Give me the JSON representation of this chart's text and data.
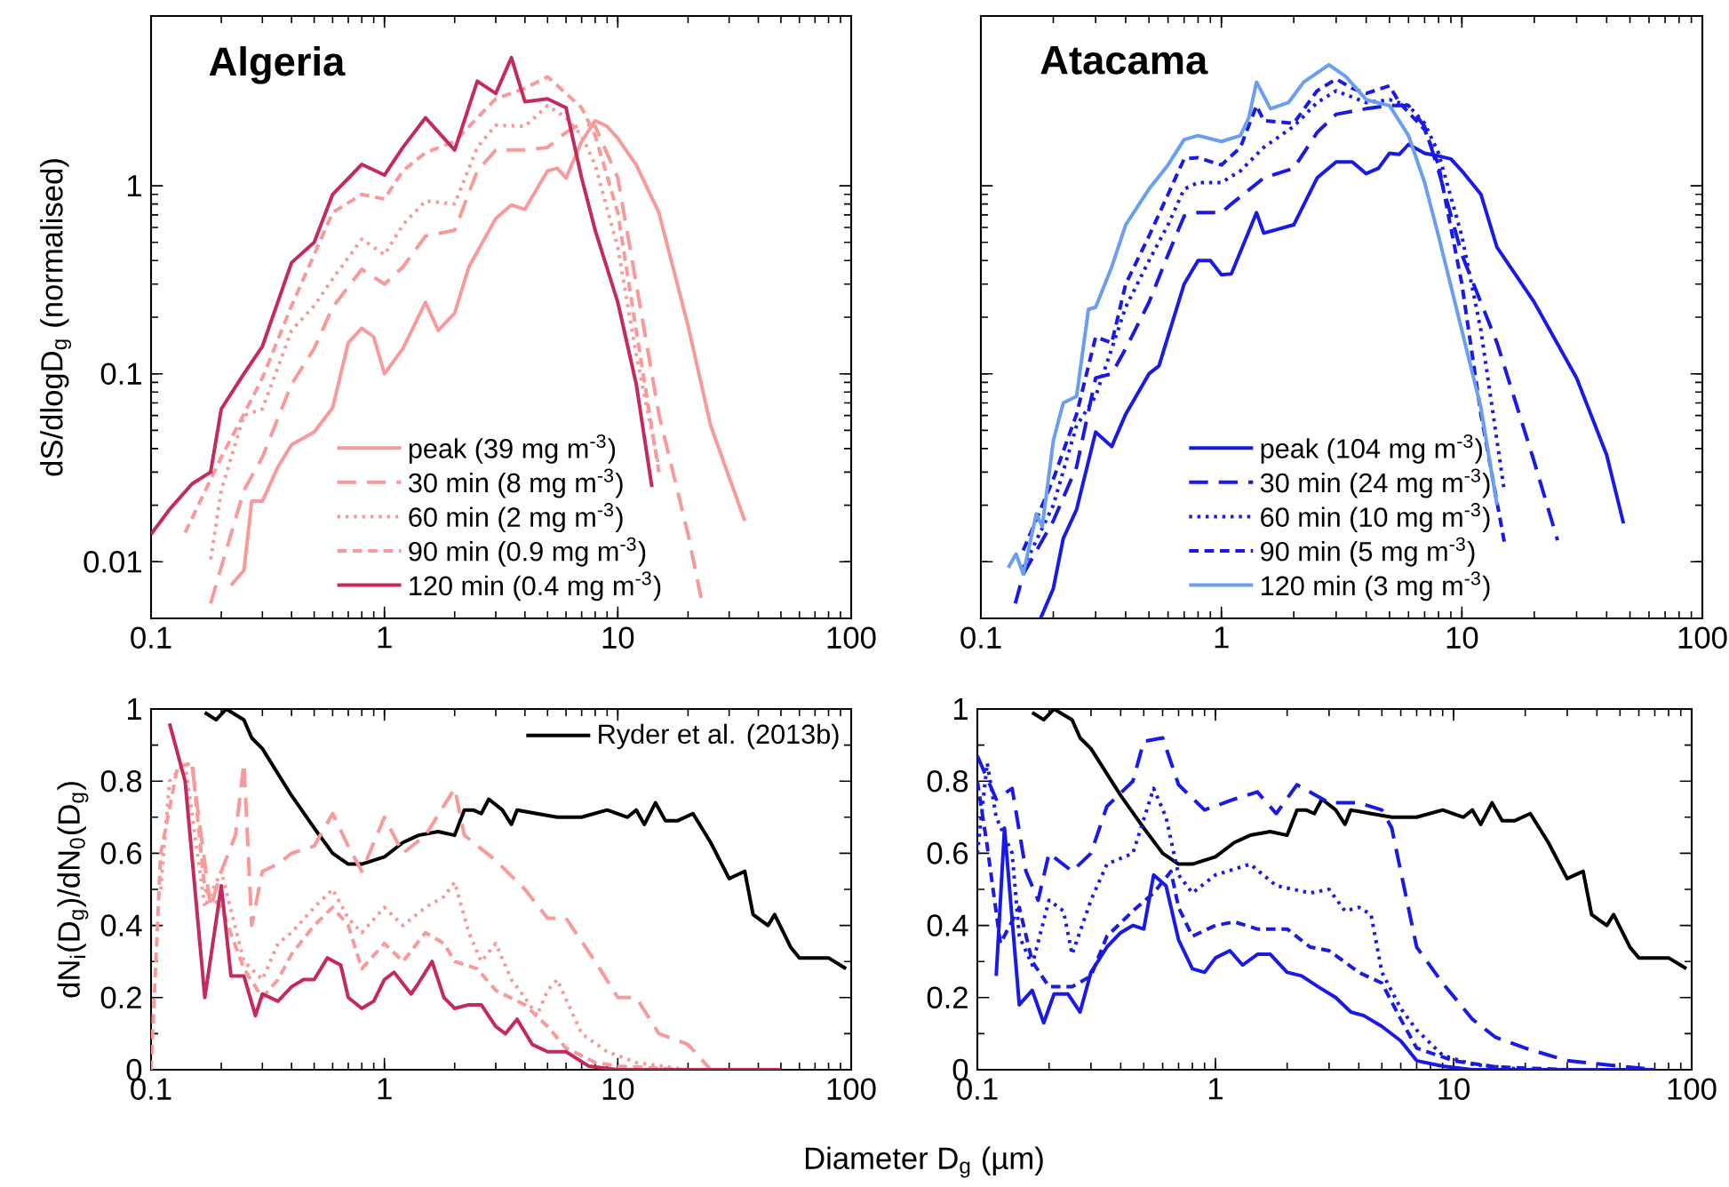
{
  "chart_data": [
    {
      "type": "line",
      "title": "Algeria",
      "ylabel": "dS/dlogD$_{g}$ (normalised)",
      "log": "xy",
      "xlim": [
        0.1,
        100
      ],
      "ylim": [
        0.005,
        8
      ],
      "xticks": [
        0.1,
        1,
        10,
        100
      ],
      "yticks": [
        0.01,
        0.1,
        1
      ],
      "legend": "bottom",
      "series": [
        {
          "name": "peak (39 mg m$^{-3}$)",
          "color": "#f99a9a",
          "line_style": "solid",
          "x": [
            0.22,
            0.25,
            0.27,
            0.3,
            0.35,
            0.4,
            0.5,
            0.6,
            0.7,
            0.8,
            0.9,
            1,
            1.2,
            1.5,
            1.7,
            2,
            2.3,
            3,
            3.5,
            4,
            5,
            5.5,
            6,
            7,
            8,
            9,
            10,
            12,
            15,
            20,
            25,
            35
          ],
          "values": [
            0.0075,
            0.009,
            0.021,
            0.021,
            0.032,
            0.042,
            0.049,
            0.066,
            0.146,
            0.175,
            0.157,
            0.1,
            0.136,
            0.24,
            0.17,
            0.21,
            0.37,
            0.67,
            0.79,
            0.75,
            1.2,
            1.24,
            1.1,
            1.72,
            2.22,
            2.07,
            1.79,
            1.29,
            0.72,
            0.18,
            0.053,
            0.0165
          ]
        },
        {
          "name": "30 min (8 mg m$^{-3}$)",
          "color": "#f99a9a",
          "line_style": "long dashed",
          "x": [
            0.18,
            0.25,
            0.3,
            0.4,
            0.5,
            0.6,
            0.8,
            1,
            1.2,
            1.5,
            2,
            2.5,
            3,
            4,
            5,
            6,
            7,
            8,
            10,
            12,
            15,
            20,
            23
          ],
          "values": [
            0.006,
            0.024,
            0.036,
            0.088,
            0.136,
            0.226,
            0.36,
            0.3,
            0.37,
            0.54,
            0.58,
            1.2,
            1.55,
            1.55,
            1.6,
            1.92,
            2.15,
            2.07,
            1.1,
            0.3,
            0.061,
            0.014,
            0.006
          ]
        },
        {
          "name": "60 min (2 mg m$^{-3}$)",
          "color": "#f99a9a",
          "line_style": "dotted",
          "x": [
            0.18,
            0.2,
            0.25,
            0.3,
            0.4,
            0.5,
            0.6,
            0.8,
            1,
            1.2,
            1.5,
            2,
            2.5,
            3,
            4,
            5,
            6,
            7,
            8,
            10,
            12,
            15
          ],
          "values": [
            0.0103,
            0.024,
            0.06,
            0.065,
            0.17,
            0.23,
            0.32,
            0.52,
            0.43,
            0.62,
            0.83,
            0.8,
            1.6,
            2.1,
            2.07,
            2.67,
            2.3,
            1.85,
            1.29,
            0.47,
            0.126,
            0.032
          ]
        },
        {
          "name": "90 min (0.9 mg m$^{-3}$)",
          "color": "#f99a9a",
          "line_style": "dashed",
          "x": [
            0.14,
            0.2,
            0.25,
            0.3,
            0.4,
            0.5,
            0.6,
            0.8,
            1,
            1.2,
            1.5,
            2,
            2.5,
            3,
            4,
            5,
            6,
            7,
            8,
            10,
            12,
            15
          ],
          "values": [
            0.0143,
            0.036,
            0.061,
            0.095,
            0.23,
            0.43,
            0.72,
            0.9,
            0.85,
            1.2,
            1.5,
            1.72,
            2.3,
            2.9,
            3.3,
            3.8,
            3.1,
            2.6,
            1.85,
            0.72,
            0.17,
            0.03
          ]
        },
        {
          "name": "120 min (0.4 mg m$^{-3}$)",
          "color": "#c42a5c",
          "line_style": "solid",
          "x": [
            0.1,
            0.12,
            0.15,
            0.18,
            0.2,
            0.25,
            0.3,
            0.4,
            0.5,
            0.6,
            0.8,
            1,
            1.2,
            1.5,
            2,
            2.5,
            3,
            3.5,
            4,
            5,
            6,
            7,
            8,
            10,
            12,
            14
          ],
          "values": [
            0.014,
            0.019,
            0.026,
            0.03,
            0.065,
            0.1,
            0.14,
            0.39,
            0.5,
            0.9,
            1.3,
            1.14,
            1.6,
            2.3,
            1.55,
            3.6,
            3.1,
            4.8,
            2.8,
            2.9,
            2.6,
            1.1,
            0.58,
            0.24,
            0.088,
            0.025
          ]
        }
      ]
    },
    {
      "type": "line",
      "title": "Atacama",
      "log": "xy",
      "xlim": [
        0.1,
        100
      ],
      "ylim": [
        0.005,
        8
      ],
      "xticks": [
        0.1,
        1,
        10,
        100
      ],
      "yticks": [
        0.01,
        0.1,
        1
      ],
      "tick_labels": "x",
      "legend": "bottom",
      "series": [
        {
          "name": "peak (104 mg m$^{-3}$)",
          "color": "#1a1ae6",
          "line_style": "solid",
          "x": [
            0.177,
            0.2,
            0.22,
            0.25,
            0.3,
            0.35,
            0.4,
            0.5,
            0.55,
            0.7,
            0.8,
            0.9,
            1,
            1.1,
            1.4,
            1.5,
            2,
            2.5,
            3,
            3.5,
            4,
            4.5,
            5,
            5.5,
            6,
            7,
            8,
            9,
            10,
            12,
            14,
            20,
            30,
            40,
            47
          ],
          "values": [
            0.005,
            0.0072,
            0.0133,
            0.019,
            0.049,
            0.041,
            0.061,
            0.1,
            0.11,
            0.3,
            0.4,
            0.4,
            0.336,
            0.34,
            0.72,
            0.56,
            0.62,
            1.1,
            1.34,
            1.34,
            1.16,
            1.24,
            1.49,
            1.47,
            1.66,
            1.49,
            1.44,
            1.39,
            1.2,
            0.9,
            0.47,
            0.24,
            0.095,
            0.037,
            0.016
          ]
        },
        {
          "name": "30 min (24 mg m$^{-3}$)",
          "color": "#1a1ae6",
          "line_style": "long dashed",
          "x": [
            0.139,
            0.15,
            0.2,
            0.25,
            0.3,
            0.35,
            0.4,
            0.5,
            0.6,
            0.7,
            0.8,
            1,
            1.1,
            1.5,
            2,
            2.5,
            3,
            4,
            5,
            6,
            7,
            8,
            10,
            14,
            20,
            25
          ],
          "values": [
            0.006,
            0.0086,
            0.0165,
            0.032,
            0.095,
            0.1,
            0.136,
            0.24,
            0.43,
            0.69,
            0.72,
            0.72,
            0.8,
            1.1,
            1.24,
            1.92,
            2.4,
            2.57,
            2.67,
            2.67,
            2.07,
            1.2,
            0.43,
            0.146,
            0.034,
            0.013
          ]
        },
        {
          "name": "60 min (10 mg m$^{-3}$)",
          "color": "#1a1ae6",
          "line_style": "dotted",
          "x": [
            0.15,
            0.2,
            0.25,
            0.3,
            0.35,
            0.4,
            0.5,
            0.6,
            0.7,
            0.8,
            1,
            1.2,
            1.5,
            2,
            2.5,
            3,
            4,
            5,
            6,
            7,
            8,
            10,
            12,
            15
          ],
          "values": [
            0.0093,
            0.02,
            0.053,
            0.076,
            0.136,
            0.226,
            0.4,
            0.62,
            0.96,
            1.04,
            1.04,
            1.2,
            1.6,
            2.07,
            2.77,
            3.2,
            2.77,
            2.87,
            2.67,
            2.15,
            1.49,
            0.54,
            0.17,
            0.024
          ]
        },
        {
          "name": "90 min (5 mg m$^{-3}$)",
          "color": "#1a1ae6",
          "line_style": "dashed",
          "x": [
            0.15,
            0.2,
            0.25,
            0.3,
            0.35,
            0.4,
            0.5,
            0.6,
            0.7,
            0.8,
            1,
            1.2,
            1.4,
            1.5,
            2,
            2.5,
            3,
            3.5,
            4,
            5,
            5.5,
            7,
            8,
            10,
            12,
            15
          ],
          "values": [
            0.0115,
            0.0275,
            0.061,
            0.157,
            0.146,
            0.3,
            0.54,
            0.9,
            1.39,
            1.41,
            1.29,
            1.6,
            2.67,
            2.22,
            2.15,
            3.2,
            3.7,
            3.3,
            3.1,
            3.4,
            2.77,
            1.99,
            1.29,
            0.3,
            0.061,
            0.0128
          ]
        },
        {
          "name": "120 min (3 mg m$^{-3}$)",
          "color": "#6a9ef0",
          "line_style": "solid",
          "x": [
            0.13,
            0.14,
            0.15,
            0.17,
            0.18,
            0.2,
            0.22,
            0.25,
            0.28,
            0.3,
            0.35,
            0.4,
            0.5,
            0.6,
            0.7,
            0.8,
            1,
            1.2,
            1.3,
            1.4,
            1.6,
            1.9,
            2.2,
            2.8,
            3.3,
            4,
            5,
            6,
            7,
            8,
            10,
            12,
            14
          ],
          "values": [
            0.0093,
            0.011,
            0.0086,
            0.018,
            0.0154,
            0.044,
            0.07,
            0.076,
            0.22,
            0.226,
            0.37,
            0.62,
            0.96,
            1.29,
            1.76,
            1.85,
            1.72,
            1.85,
            2.3,
            3.56,
            2.57,
            2.77,
            3.56,
            4.4,
            3.8,
            2.87,
            2.67,
            1.85,
            1.04,
            0.54,
            0.17,
            0.066,
            0.02
          ]
        }
      ]
    },
    {
      "type": "line",
      "xlabel": "Diameter D$_{g}$ (µm)",
      "ylabel": "dN$_{i}$(D$_{g}$)/dN$_{0}$(D$_{g}$)",
      "log": "x",
      "xlim": [
        0.1,
        100
      ],
      "ylim": [
        0,
        1
      ],
      "xticks": [
        0.1,
        1,
        10,
        100
      ],
      "yticks": [
        0,
        0.2,
        0.4,
        0.6,
        0.8,
        1
      ],
      "legend": "top right",
      "series": [
        {
          "name": "Ryder et al. (2013b)",
          "color": "#000000",
          "line_style": "solid",
          "x": [
            0.17,
            0.19,
            0.21,
            0.25,
            0.27,
            0.3,
            0.4,
            0.5,
            0.6,
            0.7,
            0.8,
            1,
            1.2,
            1.4,
            1.7,
            2,
            2.2,
            2.4,
            2.6,
            2.8,
            3.2,
            3.5,
            3.7,
            4.5,
            5.5,
            7,
            9,
            11,
            12,
            13,
            14.5,
            16,
            18,
            21,
            25,
            30,
            35,
            38,
            44,
            47,
            55,
            60,
            80,
            95
          ],
          "values": [
            0.99,
            0.97,
            1,
            0.97,
            0.92,
            0.89,
            0.76,
            0.67,
            0.6,
            0.57,
            0.57,
            0.59,
            0.63,
            0.65,
            0.66,
            0.65,
            0.72,
            0.72,
            0.71,
            0.75,
            0.72,
            0.68,
            0.72,
            0.71,
            0.7,
            0.7,
            0.72,
            0.7,
            0.72,
            0.68,
            0.74,
            0.69,
            0.69,
            0.71,
            0.63,
            0.53,
            0.55,
            0.43,
            0.4,
            0.43,
            0.34,
            0.31,
            0.31,
            0.28
          ]
        },
        {
          "color": "#f99a9a",
          "line_style": "long dashed",
          "x": [
            0.15,
            0.18,
            0.2,
            0.23,
            0.25,
            0.27,
            0.3,
            0.35,
            0.4,
            0.5,
            0.6,
            0.7,
            0.8,
            1,
            1.2,
            1.5,
            2,
            2.2,
            3,
            4,
            5,
            6,
            8,
            10,
            12,
            15,
            20,
            25,
            50
          ],
          "values": [
            0.84,
            0.45,
            0.55,
            0.65,
            0.85,
            0.4,
            0.55,
            0.57,
            0.6,
            0.62,
            0.71,
            0.62,
            0.55,
            0.7,
            0.6,
            0.65,
            0.78,
            0.65,
            0.58,
            0.5,
            0.42,
            0.42,
            0.3,
            0.2,
            0.2,
            0.1,
            0.07,
            0,
            0
          ]
        },
        {
          "color": "#f99a9a",
          "line_style": "dotted",
          "x": [
            0.11,
            0.12,
            0.14,
            0.17,
            0.2,
            0.25,
            0.3,
            0.35,
            0.4,
            0.5,
            0.6,
            0.7,
            0.8,
            1,
            1.2,
            1.5,
            1.8,
            2,
            2.3,
            2.6,
            3,
            3.5,
            4,
            4.5,
            5,
            5.5,
            7,
            9,
            12,
            20,
            50
          ],
          "values": [
            0.5,
            0.8,
            0.85,
            0.45,
            0.55,
            0.3,
            0.25,
            0.35,
            0.38,
            0.45,
            0.5,
            0.42,
            0.38,
            0.45,
            0.4,
            0.45,
            0.48,
            0.52,
            0.38,
            0.3,
            0.35,
            0.25,
            0.2,
            0.15,
            0.22,
            0.25,
            0.1,
            0.05,
            0.02,
            0,
            0
          ]
        },
        {
          "color": "#f99a9a",
          "line_style": "dashed",
          "x": [
            0.1,
            0.11,
            0.13,
            0.15,
            0.17,
            0.2,
            0.25,
            0.3,
            0.35,
            0.4,
            0.5,
            0.6,
            0.7,
            0.8,
            1,
            1.2,
            1.5,
            1.8,
            2,
            2.5,
            3,
            4,
            5,
            6,
            8,
            10,
            20,
            50
          ],
          "values": [
            0,
            0.6,
            0.84,
            0.85,
            0.5,
            0.45,
            0.28,
            0.2,
            0.25,
            0.32,
            0.4,
            0.45,
            0.4,
            0.28,
            0.35,
            0.3,
            0.38,
            0.35,
            0.3,
            0.28,
            0.22,
            0.18,
            0.12,
            0.06,
            0.02,
            0.01,
            0,
            0
          ]
        },
        {
          "color": "#c42a5c",
          "line_style": "solid",
          "x": [
            0.12,
            0.14,
            0.17,
            0.2,
            0.22,
            0.25,
            0.28,
            0.3,
            0.35,
            0.4,
            0.45,
            0.5,
            0.57,
            0.65,
            0.7,
            0.8,
            0.9,
            1,
            1.1,
            1.3,
            1.4,
            1.6,
            1.8,
            2,
            2.3,
            2.6,
            3,
            3.3,
            3.7,
            4.3,
            5,
            6,
            7.5,
            10,
            20,
            50
          ],
          "values": [
            0.96,
            0.8,
            0.2,
            0.51,
            0.26,
            0.26,
            0.15,
            0.21,
            0.19,
            0.23,
            0.25,
            0.25,
            0.31,
            0.29,
            0.2,
            0.17,
            0.19,
            0.25,
            0.27,
            0.21,
            0.24,
            0.3,
            0.2,
            0.17,
            0.18,
            0.18,
            0.12,
            0.1,
            0.14,
            0.07,
            0.05,
            0.05,
            0.01,
            0,
            0,
            0
          ]
        }
      ]
    },
    {
      "type": "line",
      "log": "x",
      "xlim": [
        0.1,
        100
      ],
      "ylim": [
        0,
        1
      ],
      "xticks": [
        0.1,
        1,
        10,
        100
      ],
      "yticks": [
        0,
        0.2,
        0.4,
        0.6,
        0.8,
        1
      ],
      "series": [
        {
          "color": "#000000",
          "line_style": "solid",
          "x": [
            0.17,
            0.19,
            0.21,
            0.25,
            0.27,
            0.3,
            0.4,
            0.5,
            0.6,
            0.7,
            0.8,
            1,
            1.2,
            1.4,
            1.7,
            2,
            2.2,
            2.4,
            2.6,
            2.8,
            3.2,
            3.5,
            3.7,
            4.5,
            5.5,
            7,
            9,
            11,
            12,
            13,
            14.5,
            16,
            18,
            21,
            25,
            30,
            35,
            38,
            44,
            47,
            55,
            60,
            80,
            95
          ],
          "values": [
            0.99,
            0.97,
            1,
            0.97,
            0.92,
            0.89,
            0.76,
            0.67,
            0.6,
            0.57,
            0.57,
            0.59,
            0.63,
            0.65,
            0.66,
            0.65,
            0.72,
            0.72,
            0.71,
            0.75,
            0.72,
            0.68,
            0.72,
            0.71,
            0.7,
            0.7,
            0.72,
            0.7,
            0.72,
            0.68,
            0.74,
            0.69,
            0.69,
            0.71,
            0.63,
            0.53,
            0.55,
            0.43,
            0.4,
            0.43,
            0.34,
            0.31,
            0.31,
            0.28
          ]
        },
        {
          "color": "#1a1ae6",
          "line_style": "long dashed",
          "x": [
            0.1,
            0.12,
            0.14,
            0.16,
            0.18,
            0.2,
            0.25,
            0.3,
            0.35,
            0.45,
            0.5,
            0.6,
            0.7,
            0.9,
            1.2,
            1.5,
            1.8,
            2.2,
            3,
            4,
            5,
            5.5,
            6,
            7,
            9,
            12,
            15,
            20,
            30,
            50,
            70
          ],
          "values": [
            0.87,
            0.75,
            0.78,
            0.55,
            0.47,
            0.6,
            0.55,
            0.6,
            0.73,
            0.8,
            0.91,
            0.92,
            0.79,
            0.72,
            0.75,
            0.77,
            0.71,
            0.79,
            0.74,
            0.74,
            0.72,
            0.67,
            0.55,
            0.34,
            0.24,
            0.14,
            0.09,
            0.06,
            0.025,
            0.01,
            0
          ]
        },
        {
          "color": "#1a1ae6",
          "line_style": "dotted",
          "x": [
            0.1,
            0.11,
            0.12,
            0.14,
            0.15,
            0.17,
            0.2,
            0.23,
            0.25,
            0.3,
            0.35,
            0.45,
            0.55,
            0.62,
            0.7,
            0.8,
            1,
            1.4,
            1.8,
            2.5,
            3,
            3.5,
            4,
            4.5,
            5,
            6,
            7,
            9,
            12,
            20,
            70
          ],
          "values": [
            0.6,
            0.85,
            0.7,
            0.6,
            0.37,
            0.29,
            0.47,
            0.44,
            0.32,
            0.47,
            0.57,
            0.6,
            0.78,
            0.7,
            0.54,
            0.49,
            0.54,
            0.57,
            0.51,
            0.49,
            0.5,
            0.44,
            0.45,
            0.43,
            0.27,
            0.17,
            0.11,
            0.04,
            0.015,
            0,
            0
          ]
        },
        {
          "color": "#1a1ae6",
          "line_style": "dashed",
          "x": [
            0.1,
            0.11,
            0.125,
            0.15,
            0.17,
            0.2,
            0.25,
            0.3,
            0.35,
            0.45,
            0.55,
            0.65,
            0.7,
            0.8,
            1,
            1.2,
            1.5,
            2,
            2.5,
            3,
            4,
            5,
            6,
            7,
            10,
            15,
            30,
            70
          ],
          "values": [
            0.8,
            0.62,
            0.35,
            0.45,
            0.3,
            0.23,
            0.23,
            0.26,
            0.37,
            0.44,
            0.49,
            0.55,
            0.45,
            0.37,
            0.4,
            0.41,
            0.39,
            0.39,
            0.34,
            0.33,
            0.27,
            0.24,
            0.14,
            0.06,
            0.025,
            0.008,
            0,
            0
          ]
        },
        {
          "color": "#1a1ae6",
          "line_style": "solid",
          "x": [
            0.12,
            0.13,
            0.15,
            0.17,
            0.19,
            0.21,
            0.24,
            0.27,
            0.3,
            0.35,
            0.4,
            0.45,
            0.5,
            0.55,
            0.62,
            0.7,
            0.8,
            0.9,
            1,
            1.15,
            1.3,
            1.5,
            1.7,
            2,
            2.3,
            2.7,
            3.2,
            3.7,
            4.2,
            5,
            6,
            7,
            9,
            12,
            30,
            70
          ],
          "values": [
            0.26,
            0.67,
            0.18,
            0.22,
            0.13,
            0.21,
            0.21,
            0.16,
            0.27,
            0.34,
            0.38,
            0.4,
            0.39,
            0.54,
            0.51,
            0.36,
            0.28,
            0.27,
            0.31,
            0.33,
            0.29,
            0.32,
            0.32,
            0.27,
            0.26,
            0.23,
            0.2,
            0.16,
            0.15,
            0.12,
            0.08,
            0.025,
            0.01,
            0,
            0,
            0
          ]
        }
      ]
    }
  ]
}
